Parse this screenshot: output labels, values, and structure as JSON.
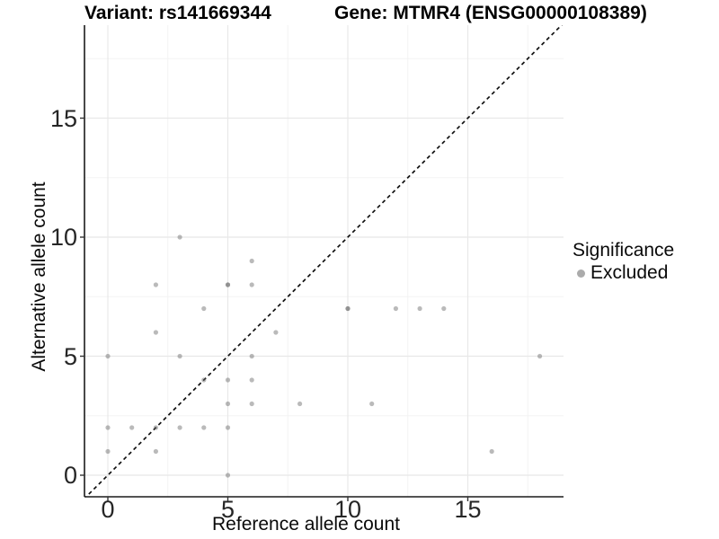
{
  "titles": {
    "variant": "Variant: rs141669344",
    "gene": "Gene: MTMR4 (ENSG00000108389)"
  },
  "axes": {
    "x_label": "Reference allele count",
    "y_label": "Alternative allele count",
    "x_ticks": [
      0,
      5,
      10,
      15
    ],
    "y_ticks": [
      0,
      5,
      10,
      15
    ],
    "x_minor": [
      2.5,
      7.5,
      12.5,
      17.5
    ],
    "y_minor": [
      2.5,
      7.5,
      12.5,
      17.5
    ]
  },
  "legend": {
    "title": "Significance",
    "items": [
      {
        "label": "Excluded",
        "color": "#ababab"
      }
    ]
  },
  "colors": {
    "background": "#ffffff",
    "grid_major": "#e8e8e8",
    "grid_minor": "#f3f3f3",
    "axis_line": "#1a1a1a",
    "tick_mark": "#333333",
    "point": "#666666",
    "identity_line": "#111111"
  },
  "chart_data": {
    "type": "scatter",
    "title": "Variant: rs141669344 — Gene: MTMR4 (ENSG00000108389)",
    "xlabel": "Reference allele count",
    "ylabel": "Alternative allele count",
    "xlim": [
      -1,
      19
    ],
    "ylim": [
      -1,
      19
    ],
    "grid": "on",
    "legend_position": "right",
    "point_opacity": 0.45,
    "identity_line": {
      "style": "dashed",
      "from": [
        -1,
        -1
      ],
      "to": [
        19,
        19
      ]
    },
    "series": [
      {
        "name": "Excluded",
        "points": [
          [
            0,
            1
          ],
          [
            0,
            2
          ],
          [
            0,
            5
          ],
          [
            1,
            2
          ],
          [
            2,
            1
          ],
          [
            2,
            2
          ],
          [
            2,
            6
          ],
          [
            2,
            8
          ],
          [
            3,
            2
          ],
          [
            3,
            5
          ],
          [
            3,
            10
          ],
          [
            4,
            2
          ],
          [
            4,
            4
          ],
          [
            4,
            7
          ],
          [
            5,
            0
          ],
          [
            5,
            2
          ],
          [
            5,
            3
          ],
          [
            5,
            4
          ],
          [
            5,
            8
          ],
          [
            5,
            8
          ],
          [
            6,
            3
          ],
          [
            6,
            4
          ],
          [
            6,
            5
          ],
          [
            6,
            8
          ],
          [
            6,
            9
          ],
          [
            7,
            6
          ],
          [
            8,
            3
          ],
          [
            10,
            7
          ],
          [
            10,
            7
          ],
          [
            11,
            3
          ],
          [
            12,
            7
          ],
          [
            13,
            7
          ],
          [
            14,
            7
          ],
          [
            16,
            1
          ],
          [
            18,
            5
          ]
        ]
      }
    ]
  }
}
